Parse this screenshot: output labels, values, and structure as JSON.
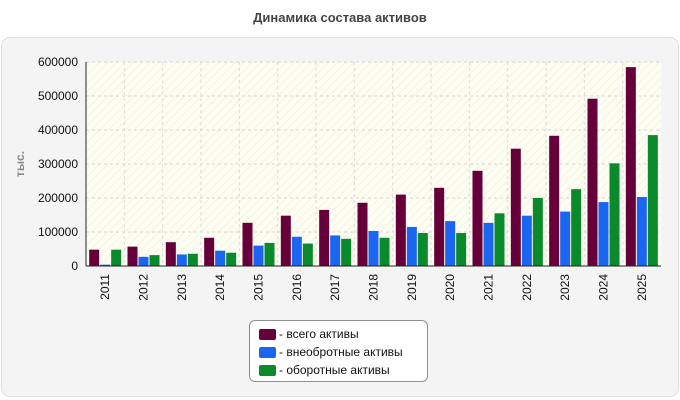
{
  "title": "Динамика состава активов",
  "chart_data": {
    "type": "bar",
    "categories": [
      "2011",
      "2012",
      "2013",
      "2014",
      "2015",
      "2016",
      "2017",
      "2018",
      "2019",
      "2020",
      "2021",
      "2022",
      "2023",
      "2024",
      "2025"
    ],
    "series": [
      {
        "name": "- всего активы",
        "color": "#66003a",
        "values": [
          48000,
          57000,
          70000,
          83000,
          127000,
          148000,
          165000,
          186000,
          210000,
          230000,
          280000,
          345000,
          383000,
          492000,
          585000
        ]
      },
      {
        "name": "- внеобротные активы",
        "color": "#1a66f0",
        "values": [
          4000,
          27000,
          34000,
          45000,
          60000,
          86000,
          90000,
          103000,
          115000,
          132000,
          127000,
          148000,
          160000,
          188000,
          203000
        ]
      },
      {
        "name": "- оборотные активы",
        "color": "#0a8a2a",
        "values": [
          48000,
          32000,
          36000,
          39000,
          68000,
          66000,
          80000,
          83000,
          97000,
          97000,
          155000,
          200000,
          226000,
          302000,
          385000
        ]
      }
    ],
    "xlabel": "",
    "ylabel": "тыс.",
    "ylim": [
      0,
      600000
    ],
    "yticks": [
      "0",
      "100000",
      "200000",
      "300000",
      "400000",
      "500000",
      "600000"
    ],
    "grid": true,
    "legend": "bottom"
  }
}
